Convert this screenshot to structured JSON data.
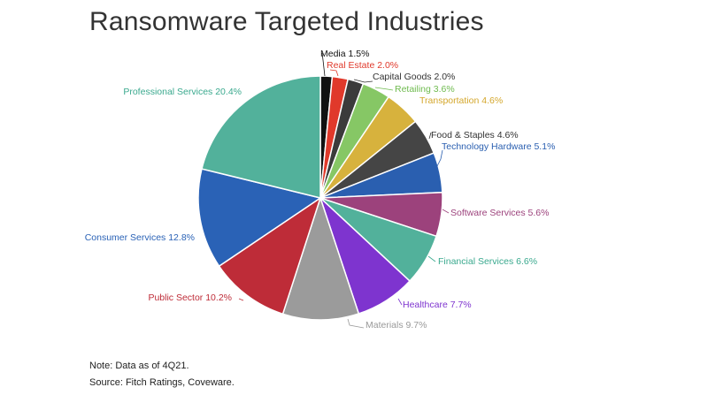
{
  "title": "Ransomware Targeted Industries",
  "note": "Note: Data as of 4Q21.",
  "source": "Source: Fitch Ratings, Coveware.",
  "chart_data": {
    "type": "pie",
    "title": "Ransomware Targeted Industries",
    "start": "12 o'clock",
    "direction": "clockwise",
    "slices": [
      {
        "label": "Media",
        "value": 1.5,
        "text": "Media 1.5%",
        "color": "#111111",
        "text_color": "#111111"
      },
      {
        "label": "Real Estate",
        "value": 2.0,
        "text": "Real Estate 2.0%",
        "color": "#e0392b",
        "text_color": "#e0392b"
      },
      {
        "label": "Capital Goods",
        "value": 2.0,
        "text": "Capital Goods 2.0%",
        "color": "#3b3b3b",
        "text_color": "#333333"
      },
      {
        "label": "Retailing",
        "value": 3.6,
        "text": "Retailing 3.6%",
        "color": "#86c765",
        "text_color": "#6fbb4f"
      },
      {
        "label": "Transportation",
        "value": 4.6,
        "text": "Transportation 4.6%",
        "color": "#d7b23d",
        "text_color": "#d4a72c"
      },
      {
        "label": "Food & Staples",
        "value": 4.6,
        "text": "Food & Staples 4.6%",
        "color": "#454545",
        "text_color": "#333333"
      },
      {
        "label": "Technology Hardware",
        "value": 5.1,
        "text": "Technology Hardware 5.1%",
        "color": "#2a5fb0",
        "text_color": "#2a5fb0"
      },
      {
        "label": "Software Services",
        "value": 5.6,
        "text": "Software Services 5.6%",
        "color": "#9c427c",
        "text_color": "#9c427c"
      },
      {
        "label": "Financial Services",
        "value": 6.6,
        "text": "Financial Services 6.6%",
        "color": "#52b19b",
        "text_color": "#3aa98e"
      },
      {
        "label": "Healthcare",
        "value": 7.7,
        "text": "Healthcare 7.7%",
        "color": "#7e34cf",
        "text_color": "#7e34cf"
      },
      {
        "label": "Materials",
        "value": 9.7,
        "text": "Materials 9.7%",
        "color": "#9b9b9b",
        "text_color": "#999999"
      },
      {
        "label": "Public Sector",
        "value": 10.2,
        "text": "Public Sector 10.2%",
        "color": "#be2c38",
        "text_color": "#be2c38"
      },
      {
        "label": "Consumer Services",
        "value": 12.8,
        "text": "Consumer Services 12.8%",
        "color": "#2a62b6",
        "text_color": "#2a62b6"
      },
      {
        "label": "Professional Services",
        "value": 20.4,
        "text": "Professional Services 20.4%",
        "color": "#52b19b",
        "text_color": "#3aa98e"
      }
    ]
  }
}
